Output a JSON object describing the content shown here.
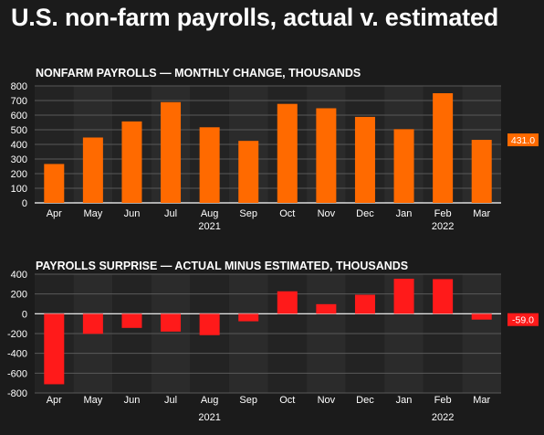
{
  "title": "U.S. non-farm payrolls, actual v. estimated",
  "chart_data": [
    {
      "type": "bar",
      "title": "NONFARM PAYROLLS — MONTHLY CHANGE, THOUSANDS",
      "categories": [
        "Apr",
        "May",
        "Jun",
        "Jul",
        "Aug",
        "Sep",
        "Oct",
        "Nov",
        "Dec",
        "Jan",
        "Feb",
        "Mar"
      ],
      "year_labels": [
        {
          "label": "2021",
          "category": "Aug"
        },
        {
          "label": "2022",
          "category": "Feb"
        }
      ],
      "values": [
        266,
        447,
        557,
        689,
        517,
        424,
        677,
        647,
        588,
        504,
        750,
        431
      ],
      "ylim": [
        0,
        800
      ],
      "yticks": [
        0,
        100,
        200,
        300,
        400,
        500,
        600,
        700,
        800
      ],
      "last_value_label": "431.0",
      "color": "#ff6a00",
      "grid": true
    },
    {
      "type": "bar",
      "title": "PAYROLLS SURPRISE — ACTUAL MINUS ESTIMATED, THOUSANDS",
      "categories": [
        "Apr",
        "May",
        "Jun",
        "Jul",
        "Aug",
        "Sep",
        "Oct",
        "Nov",
        "Dec",
        "Jan",
        "Feb",
        "Mar"
      ],
      "year_labels": [
        {
          "label": "2021",
          "category": "Aug"
        },
        {
          "label": "2022",
          "category": "Feb"
        }
      ],
      "values": [
        -712,
        -203,
        -143,
        -180,
        -216,
        -76,
        227,
        97,
        192,
        354,
        350,
        -59
      ],
      "ylim": [
        -800,
        400
      ],
      "yticks": [
        -800,
        -600,
        -400,
        -200,
        0,
        200,
        400
      ],
      "last_value_label": "-59.0",
      "color": "#ff1a1a",
      "grid": true
    }
  ]
}
